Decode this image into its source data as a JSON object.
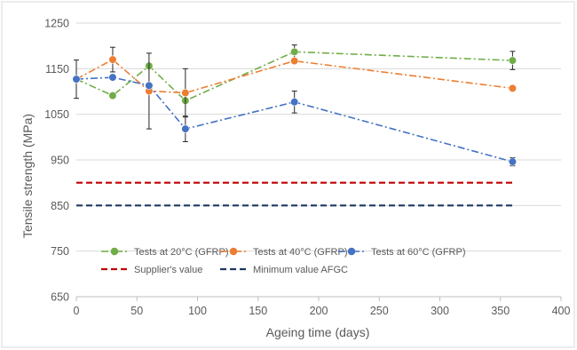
{
  "chart_data": {
    "type": "line",
    "title": "",
    "xlabel": "Ageing time (days)",
    "ylabel": "Tensile strength (MPa)",
    "xlim": [
      0,
      400
    ],
    "ylim": [
      650,
      1250
    ],
    "x_ticks": [
      0,
      50,
      100,
      150,
      200,
      250,
      300,
      350,
      400
    ],
    "y_ticks": [
      650,
      750,
      850,
      950,
      1050,
      1150,
      1250
    ],
    "grid": "horizontal",
    "legend_position": "bottom-inside",
    "series": [
      {
        "name": "Tests at 20°C (GFRP)",
        "color": "#70ad47",
        "style": "dash-dot",
        "marker": "circle",
        "x": [
          0,
          30,
          60,
          90,
          180,
          360
        ],
        "y": [
          1127,
          1091,
          1156,
          1080,
          1187,
          1168
        ],
        "error": [
          0,
          0,
          0,
          0,
          15,
          20
        ]
      },
      {
        "name": "Tests at 40°C (GFRP)",
        "color": "#ed7d31",
        "style": "dash-dot",
        "marker": "circle",
        "x": [
          0,
          30,
          60,
          90,
          180,
          360
        ],
        "y": [
          1127,
          1170,
          1101,
          1097,
          1167,
          1107
        ],
        "error": [
          0,
          27,
          83,
          53,
          0,
          5
        ]
      },
      {
        "name": "Tests at 60°C (GFRP)",
        "color": "#4472c4",
        "style": "dash-dot",
        "marker": "circle",
        "x": [
          0,
          30,
          60,
          90,
          180,
          360
        ],
        "y": [
          1127,
          1131,
          1113,
          1018,
          1077,
          946
        ],
        "error": [
          42,
          0,
          0,
          28,
          24,
          9
        ]
      },
      {
        "name": "Supplier's value",
        "color": "#c00000",
        "style": "dash",
        "marker": "none",
        "x": [
          0,
          360
        ],
        "y": [
          900,
          900
        ]
      },
      {
        "name": "Minimum value AFGC",
        "color": "#1f3864",
        "style": "dash",
        "marker": "none",
        "x": [
          0,
          360
        ],
        "y": [
          850,
          850
        ]
      }
    ]
  }
}
